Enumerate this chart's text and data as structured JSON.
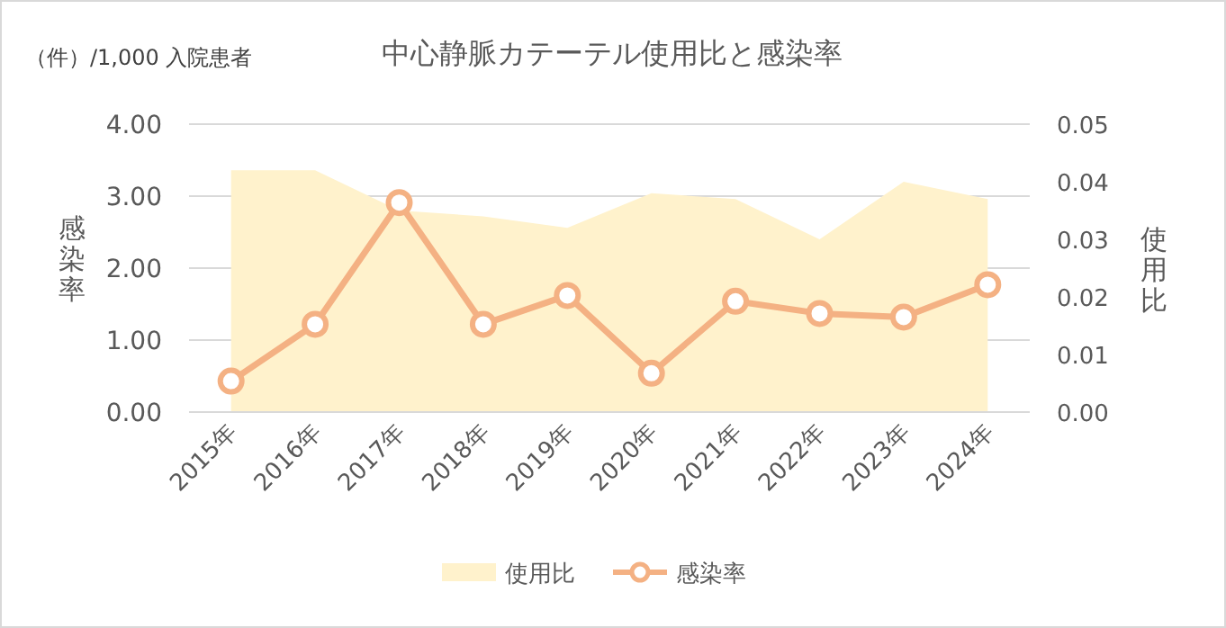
{
  "chart_data": {
    "type": "line",
    "title": "中心静脈カテーテル使用比と感染率",
    "ylabel": "感染率",
    "y2label": "使用比",
    "annotations": [
      "（件）/1,000 入院患者"
    ],
    "categories": [
      "2015年",
      "2016年",
      "2017年",
      "2018年",
      "2019年",
      "2020年",
      "2021年",
      "2022年",
      "2023年",
      "2024年"
    ],
    "series": [
      {
        "name": "使用比",
        "type": "area",
        "axis": "y2",
        "color": "#fff2cc",
        "values": [
          0.042,
          0.042,
          0.035,
          0.034,
          0.032,
          0.038,
          0.037,
          0.03,
          0.04,
          0.037
        ]
      },
      {
        "name": "感染率",
        "color": "#f4b183",
        "marker": "circle",
        "values": [
          0.43,
          1.22,
          2.91,
          1.22,
          1.62,
          0.54,
          1.54,
          1.37,
          1.32,
          1.77
        ]
      }
    ],
    "ylim": [
      0,
      4
    ],
    "yticks": [
      {
        "value": 0,
        "label": "0.00"
      },
      {
        "value": 1,
        "label": "1.00"
      },
      {
        "value": 2,
        "label": "2.00"
      },
      {
        "value": 3,
        "label": "3.00"
      },
      {
        "value": 4,
        "label": "4.00"
      }
    ],
    "y2lim": [
      0,
      0.05
    ],
    "y2ticks": [
      {
        "value": 0,
        "label": "0.00"
      },
      0.01,
      0.02,
      0.03,
      0.04,
      0.05
    ],
    "grid": "y",
    "legend": "bottom"
  }
}
